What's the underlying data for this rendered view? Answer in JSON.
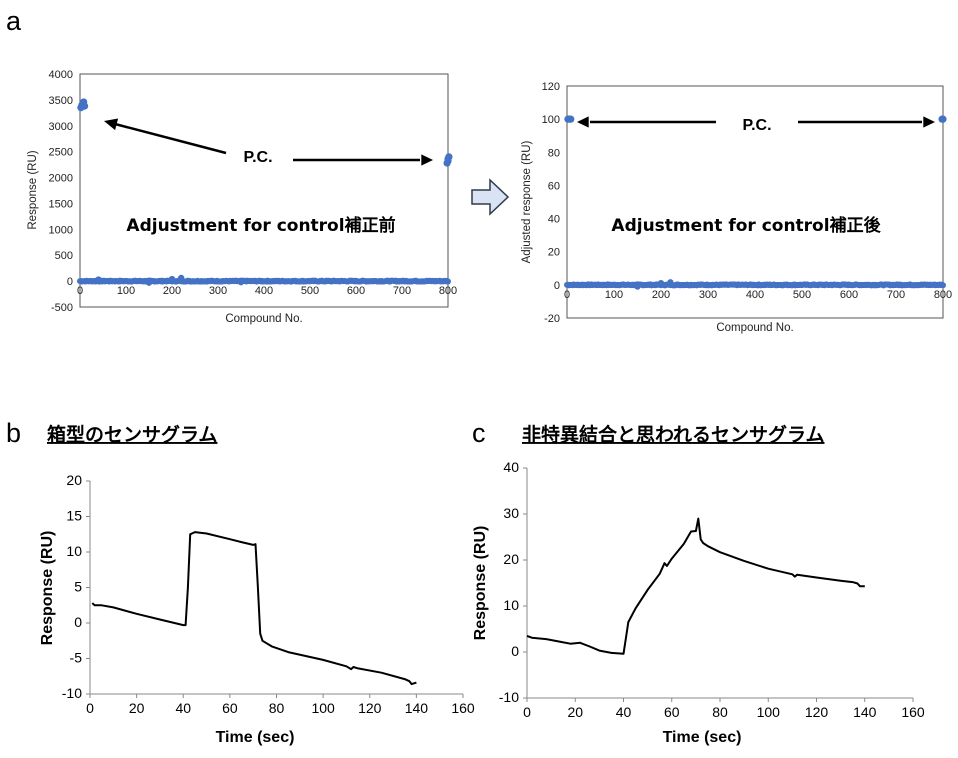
{
  "panel_labels": {
    "a": "a",
    "b": "b",
    "c": "c"
  },
  "panel_titles": {
    "b": "箱型のセンサグラム",
    "c": "非特異結合と思われるセンサグラム"
  },
  "colors": {
    "points": "#4472C4",
    "line": "#000000",
    "arrow_fill": "#DAE3F3",
    "arrow_stroke": "#2F3B4C"
  },
  "chart_data": [
    {
      "id": "a-left",
      "type": "scatter",
      "title": "",
      "xlabel": "Compound No.",
      "ylabel": "Response (RU)",
      "xlim": [
        0,
        800
      ],
      "ylim": [
        -500,
        4000
      ],
      "xticks": [
        0,
        100,
        200,
        300,
        400,
        500,
        600,
        700,
        800
      ],
      "yticks": [
        -500,
        0,
        500,
        1000,
        1500,
        2000,
        2500,
        3000,
        3500,
        4000
      ],
      "grid": false,
      "series": [
        {
          "values": [
            [
              2,
              3350
            ],
            [
              4,
              3400
            ],
            [
              6,
              3420
            ],
            [
              8,
              3460
            ],
            [
              10,
              3380
            ],
            [
              798,
              2280
            ],
            [
              800,
              2360
            ],
            [
              802,
              2400
            ],
            [
              800,
              2320
            ]
          ]
        },
        {
          "values": "near-zero points for compounds 0–800",
          "baseline": 0,
          "spread": 20,
          "outliers": [
            [
              150,
              -30
            ],
            [
              200,
              40
            ],
            [
              220,
              60
            ],
            [
              40,
              30
            ],
            [
              350,
              -20
            ]
          ]
        }
      ],
      "annotations": [
        {
          "text": "P.C."
        },
        {
          "text": "Adjustment for control補正前"
        }
      ]
    },
    {
      "id": "a-right",
      "type": "scatter",
      "title": "",
      "xlabel": "Compound No.",
      "ylabel": "Adjusted response (RU)",
      "xlim": [
        0,
        800
      ],
      "ylim": [
        -20,
        120
      ],
      "xticks": [
        0,
        100,
        200,
        300,
        400,
        500,
        600,
        700,
        800
      ],
      "yticks": [
        -20,
        0,
        20,
        40,
        60,
        80,
        100,
        120
      ],
      "grid": false,
      "series": [
        {
          "values": [
            [
              2,
              100
            ],
            [
              5,
              100
            ],
            [
              8,
              100
            ],
            [
              798,
              100
            ],
            [
              800,
              100
            ]
          ]
        },
        {
          "values": "near-zero points for compounds 0–800",
          "baseline": 0,
          "spread": 0.6,
          "outliers": [
            [
              150,
              -1
            ],
            [
              200,
              1
            ],
            [
              220,
              1.5
            ]
          ]
        }
      ],
      "annotations": [
        {
          "text": "P.C."
        },
        {
          "text": "Adjustment for control補正後"
        }
      ]
    },
    {
      "id": "b",
      "type": "line",
      "title": "箱型のセンサグラム",
      "xlabel": "Time (sec)",
      "ylabel": "Response (RU)",
      "xlim": [
        0,
        160
      ],
      "ylim": [
        -10,
        20
      ],
      "xticks": [
        0,
        20,
        40,
        60,
        80,
        100,
        120,
        140,
        160
      ],
      "yticks": [
        -10,
        -5,
        0,
        5,
        10,
        15,
        20
      ],
      "grid": false,
      "series": [
        {
          "points": [
            [
              1,
              2.8
            ],
            [
              2,
              2.5
            ],
            [
              5,
              2.5
            ],
            [
              10,
              2.2
            ],
            [
              20,
              1.3
            ],
            [
              30,
              0.5
            ],
            [
              40,
              -0.3
            ],
            [
              41,
              -0.3
            ],
            [
              42,
              5
            ],
            [
              43,
              12.5
            ],
            [
              45,
              12.8
            ],
            [
              50,
              12.6
            ],
            [
              60,
              11.8
            ],
            [
              65,
              11.4
            ],
            [
              70,
              11.0
            ],
            [
              71,
              11.1
            ],
            [
              72,
              5
            ],
            [
              73,
              -1.5
            ],
            [
              74,
              -2.5
            ],
            [
              78,
              -3.3
            ],
            [
              85,
              -4.1
            ],
            [
              100,
              -5.2
            ],
            [
              110,
              -6.1
            ],
            [
              112,
              -6.5
            ],
            [
              113,
              -6.2
            ],
            [
              115,
              -6.4
            ],
            [
              125,
              -7.0
            ],
            [
              135,
              -7.9
            ],
            [
              137,
              -8.2
            ],
            [
              138,
              -8.6
            ],
            [
              140,
              -8.4
            ]
          ]
        }
      ]
    },
    {
      "id": "c",
      "type": "line",
      "title": "非特異結合と思われるセンサグラム",
      "xlabel": "Time (sec)",
      "ylabel": "Response (RU)",
      "xlim": [
        0,
        160
      ],
      "ylim": [
        -10,
        40
      ],
      "xticks": [
        0,
        20,
        40,
        60,
        80,
        100,
        120,
        140,
        160
      ],
      "yticks": [
        -10,
        0,
        10,
        20,
        30,
        40
      ],
      "grid": false,
      "series": [
        {
          "points": [
            [
              0,
              3.5
            ],
            [
              2,
              3.1
            ],
            [
              8,
              2.8
            ],
            [
              14,
              2.2
            ],
            [
              18,
              1.8
            ],
            [
              22,
              2.0
            ],
            [
              26,
              1.2
            ],
            [
              30,
              0.3
            ],
            [
              35,
              -0.2
            ],
            [
              40,
              -0.4
            ],
            [
              41,
              3
            ],
            [
              42,
              6.5
            ],
            [
              45,
              9.5
            ],
            [
              50,
              13.5
            ],
            [
              55,
              17
            ],
            [
              57,
              19.3
            ],
            [
              58,
              18.7
            ],
            [
              60,
              20.3
            ],
            [
              65,
              23.5
            ],
            [
              68,
              26.2
            ],
            [
              70,
              26.3
            ],
            [
              71,
              29
            ],
            [
              72,
              24.5
            ],
            [
              73,
              23.7
            ],
            [
              75,
              23
            ],
            [
              80,
              21.7
            ],
            [
              90,
              19.8
            ],
            [
              100,
              18.1
            ],
            [
              110,
              16.9
            ],
            [
              111,
              16.4
            ],
            [
              112,
              16.8
            ],
            [
              120,
              16.2
            ],
            [
              130,
              15.5
            ],
            [
              135,
              15.2
            ],
            [
              137,
              14.9
            ],
            [
              138,
              14.3
            ],
            [
              140,
              14.3
            ]
          ]
        }
      ]
    }
  ]
}
